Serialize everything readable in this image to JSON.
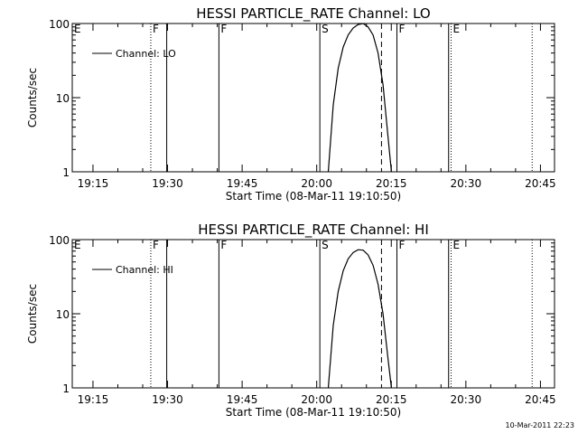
{
  "footer": {
    "timestamp": "10-Mar-2011 22:23"
  },
  "chart_data": [
    {
      "type": "line",
      "title": "HESSI PARTICLE_RATE Channel: LO",
      "xlabel": "Start Time (08-Mar-11 19:10:50)",
      "ylabel": "Counts/sec",
      "yscale": "log",
      "ylim": [
        1,
        100
      ],
      "xlim_minutes": [
        0,
        97
      ],
      "xticks": [
        {
          "label": "19:15",
          "t": 4.17
        },
        {
          "label": "19:30",
          "t": 19.17
        },
        {
          "label": "19:45",
          "t": 34.17
        },
        {
          "label": "20:00",
          "t": 49.17
        },
        {
          "label": "20:15",
          "t": 64.17
        },
        {
          "label": "20:30",
          "t": 79.17
        },
        {
          "label": "20:45",
          "t": 94.17
        }
      ],
      "yticks": [
        "1",
        "10",
        "100"
      ],
      "legend": {
        "label": "Channel: LO",
        "placement": "top-left"
      },
      "series": [
        {
          "name": "Channel: LO",
          "x": [
            51.5,
            52.5,
            53.5,
            54.5,
            55.5,
            56.5,
            57.5,
            58.5,
            59.5,
            60.5,
            61.5,
            62.5,
            63.5,
            64.2
          ],
          "y": [
            1,
            8,
            25,
            48,
            70,
            87,
            97,
            100,
            90,
            70,
            40,
            15,
            3,
            1
          ]
        }
      ],
      "markers": [
        {
          "label": "E",
          "t": 0,
          "style": "dotted"
        },
        {
          "label": "F",
          "t": 15.8,
          "style": "dotted"
        },
        {
          "label": "",
          "t": 19.0,
          "style": "solid"
        },
        {
          "label": "F",
          "t": 29.5,
          "style": "solid"
        },
        {
          "label": "S",
          "t": 49.8,
          "style": "solid"
        },
        {
          "label": "",
          "t": 62.2,
          "style": "dashed"
        },
        {
          "label": "F",
          "t": 65.3,
          "style": "solid"
        },
        {
          "label": "",
          "t": 75.7,
          "style": "solid"
        },
        {
          "label": "E",
          "t": 76.2,
          "style": "dotted"
        },
        {
          "label": "",
          "t": 92.5,
          "style": "dotted"
        }
      ]
    },
    {
      "type": "line",
      "title": "HESSI PARTICLE_RATE Channel: HI",
      "xlabel": "Start Time (08-Mar-11 19:10:50)",
      "ylabel": "Counts/sec",
      "yscale": "log",
      "ylim": [
        1,
        100
      ],
      "xlim_minutes": [
        0,
        97
      ],
      "xticks": [
        {
          "label": "19:15",
          "t": 4.17
        },
        {
          "label": "19:30",
          "t": 19.17
        },
        {
          "label": "19:45",
          "t": 34.17
        },
        {
          "label": "20:00",
          "t": 49.17
        },
        {
          "label": "20:15",
          "t": 64.17
        },
        {
          "label": "20:30",
          "t": 79.17
        },
        {
          "label": "20:45",
          "t": 94.17
        }
      ],
      "yticks": [
        "1",
        "10",
        "100"
      ],
      "legend": {
        "label": "Channel: HI",
        "placement": "top-left"
      },
      "series": [
        {
          "name": "Channel: HI",
          "x": [
            51.5,
            52.5,
            53.5,
            54.5,
            55.5,
            56.5,
            57.5,
            58.5,
            59.5,
            60.5,
            61.5,
            62.5,
            63.5,
            64.2
          ],
          "y": [
            1,
            7,
            20,
            38,
            55,
            67,
            73,
            72,
            62,
            45,
            25,
            10,
            2.5,
            1
          ]
        }
      ],
      "markers": [
        {
          "label": "E",
          "t": 0,
          "style": "dotted"
        },
        {
          "label": "F",
          "t": 15.8,
          "style": "dotted"
        },
        {
          "label": "",
          "t": 19.0,
          "style": "solid"
        },
        {
          "label": "F",
          "t": 29.5,
          "style": "solid"
        },
        {
          "label": "S",
          "t": 49.8,
          "style": "solid"
        },
        {
          "label": "",
          "t": 62.2,
          "style": "dashed"
        },
        {
          "label": "F",
          "t": 65.3,
          "style": "solid"
        },
        {
          "label": "",
          "t": 75.7,
          "style": "solid"
        },
        {
          "label": "E",
          "t": 76.2,
          "style": "dotted"
        },
        {
          "label": "",
          "t": 92.5,
          "style": "dotted"
        }
      ]
    }
  ]
}
